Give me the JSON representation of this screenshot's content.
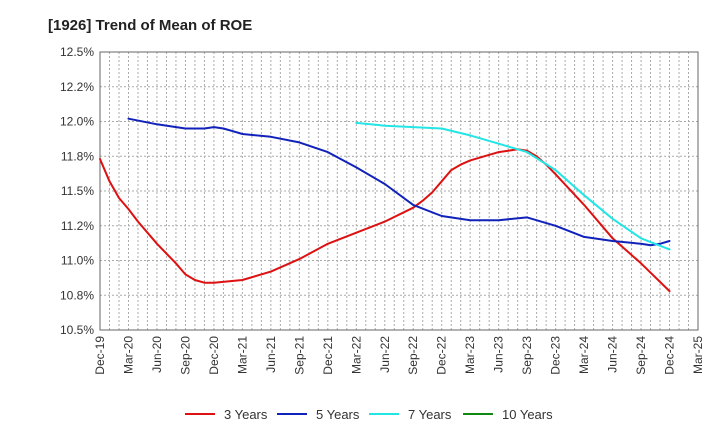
{
  "chart_data": {
    "type": "line",
    "title": "[1926]  Trend of Mean of ROE",
    "xlabel": "",
    "ylabel": "",
    "x_ticks": [
      "Dec-19",
      "Mar-20",
      "Jun-20",
      "Sep-20",
      "Dec-20",
      "Mar-21",
      "Jun-21",
      "Sep-21",
      "Dec-21",
      "Mar-22",
      "Jun-22",
      "Sep-22",
      "Dec-22",
      "Mar-23",
      "Jun-23",
      "Sep-23",
      "Dec-23",
      "Mar-24",
      "Jun-24",
      "Sep-24",
      "Dec-24",
      "Mar-25"
    ],
    "y_ticks": [
      "10.5%",
      "10.8%",
      "11.0%",
      "11.2%",
      "11.5%",
      "11.8%",
      "12.0%",
      "12.2%",
      "12.5%"
    ],
    "ylim": [
      10.5,
      12.5
    ],
    "grid": true,
    "legend_position": "bottom",
    "series": [
      {
        "name": "3 Years",
        "color": "#dd1111",
        "x": [
          "Dec-19",
          "Jan-20",
          "Feb-20",
          "Mar-20",
          "Apr-20",
          "May-20",
          "Jun-20",
          "Jul-20",
          "Aug-20",
          "Sep-20",
          "Oct-20",
          "Nov-20",
          "Dec-20",
          "Mar-21",
          "Jun-21",
          "Sep-21",
          "Dec-21",
          "Mar-22",
          "Jun-22",
          "Sep-22",
          "Oct-22",
          "Nov-22",
          "Dec-22",
          "Jan-23",
          "Feb-23",
          "Mar-23",
          "Jun-23",
          "Jul-23",
          "Aug-23",
          "Sep-23",
          "Oct-23",
          "Nov-23",
          "Dec-23",
          "Mar-24",
          "Jun-24",
          "Sep-24",
          "Dec-24"
        ],
        "values": [
          11.73,
          11.57,
          11.45,
          11.37,
          11.28,
          11.2,
          11.12,
          11.05,
          10.98,
          10.9,
          10.86,
          10.84,
          10.84,
          10.86,
          10.92,
          11.01,
          11.12,
          11.2,
          11.28,
          11.38,
          11.43,
          11.49,
          11.57,
          11.65,
          11.69,
          11.72,
          11.78,
          11.79,
          11.8,
          11.79,
          11.75,
          11.69,
          11.62,
          11.4,
          11.16,
          10.98,
          10.78
        ]
      },
      {
        "name": "5 Years",
        "color": "#1122bb",
        "x": [
          "Mar-20",
          "Jun-20",
          "Sep-20",
          "Oct-20",
          "Nov-20",
          "Dec-20",
          "Jan-21",
          "Feb-21",
          "Mar-21",
          "Jun-21",
          "Sep-21",
          "Dec-21",
          "Mar-22",
          "Jun-22",
          "Sep-22",
          "Dec-22",
          "Mar-23",
          "Jun-23",
          "Sep-23",
          "Dec-23",
          "Mar-24",
          "Jun-24",
          "Sep-24",
          "Oct-24",
          "Nov-24",
          "Dec-24"
        ],
        "values": [
          12.02,
          11.98,
          11.95,
          11.95,
          11.95,
          11.96,
          11.95,
          11.93,
          11.91,
          11.89,
          11.85,
          11.78,
          11.67,
          11.55,
          11.4,
          11.32,
          11.29,
          11.29,
          11.31,
          11.25,
          11.17,
          11.14,
          11.12,
          11.11,
          11.12,
          11.14
        ]
      },
      {
        "name": "7 Years",
        "color": "#22e5e5",
        "x": [
          "Mar-22",
          "Jun-22",
          "Sep-22",
          "Dec-22",
          "Mar-23",
          "Jun-23",
          "Sep-23",
          "Dec-23",
          "Mar-24",
          "Jun-24",
          "Sep-24",
          "Dec-24"
        ],
        "values": [
          11.99,
          11.97,
          11.96,
          11.95,
          11.9,
          11.84,
          11.78,
          11.65,
          11.47,
          11.3,
          11.16,
          11.08
        ]
      },
      {
        "name": "10 Years",
        "color": "#118811",
        "x": [],
        "values": []
      }
    ]
  }
}
